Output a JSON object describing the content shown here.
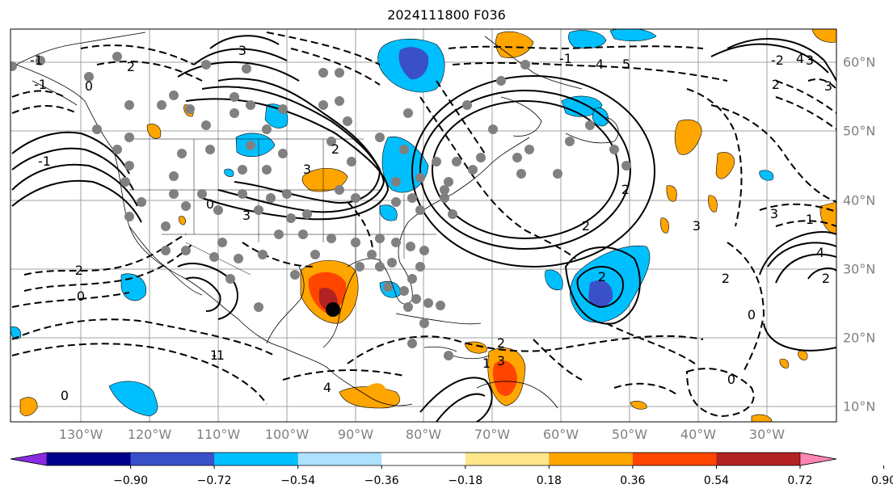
{
  "title": "2024111800 F036",
  "lon_labels": [
    "130°W",
    "120°W",
    "110°W",
    "100°W",
    "90°W",
    "80°W",
    "70°W",
    "60°W",
    "50°W",
    "40°W",
    "30°W"
  ],
  "lat_labels": [
    "60°N",
    "50°N",
    "40°N",
    "30°N",
    "20°N",
    "10°N"
  ],
  "colorbar": {
    "ticks": [
      "−0.90",
      "−0.72",
      "−0.54",
      "−0.36",
      "−0.18",
      "0.18",
      "0.36",
      "0.54",
      "0.72",
      "0.90"
    ],
    "colors": [
      "#8a2be2",
      "#00008b",
      "#3a50c8",
      "#00bfff",
      "#aee0ff",
      "#ffffff",
      "#ffe68c",
      "#ffa500",
      "#ff4500",
      "#b22222",
      "#ff85b4"
    ]
  },
  "contour_labels": [
    "2",
    "3",
    "4",
    "5",
    "-1",
    "-2",
    "0",
    "1",
    "4",
    "3",
    "2",
    "1",
    "0",
    "-2",
    "-1",
    "-1",
    "-1",
    "0",
    "0",
    "2",
    "3",
    "3",
    "2",
    "2",
    "2",
    "3",
    "1",
    "0",
    "2",
    "3",
    "4",
    "2",
    "3",
    "4",
    "2",
    "3",
    "-1",
    "0"
  ],
  "colors": {
    "land_border": "#000000",
    "grid": "#a0a0a0",
    "station_dot": "#808080"
  }
}
